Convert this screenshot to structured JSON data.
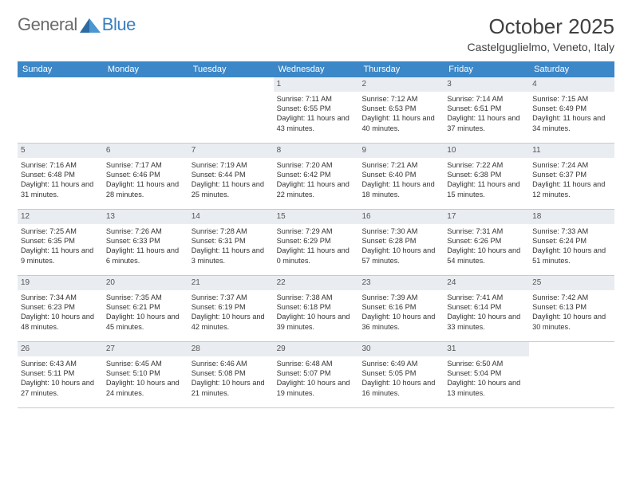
{
  "brand": {
    "part1": "General",
    "part2": "Blue"
  },
  "title": "October 2025",
  "location": "Castelguglielmo, Veneto, Italy",
  "colors": {
    "header_bg": "#3c87c7",
    "header_text": "#ffffff",
    "daynum_bg": "#e9edf1",
    "text": "#333333",
    "rule": "#c9c9c9"
  },
  "days_of_week": [
    "Sunday",
    "Monday",
    "Tuesday",
    "Wednesday",
    "Thursday",
    "Friday",
    "Saturday"
  ],
  "weeks": [
    [
      {
        "n": null
      },
      {
        "n": null
      },
      {
        "n": null
      },
      {
        "n": "1",
        "sunrise": "Sunrise: 7:11 AM",
        "sunset": "Sunset: 6:55 PM",
        "daylight": "Daylight: 11 hours and 43 minutes."
      },
      {
        "n": "2",
        "sunrise": "Sunrise: 7:12 AM",
        "sunset": "Sunset: 6:53 PM",
        "daylight": "Daylight: 11 hours and 40 minutes."
      },
      {
        "n": "3",
        "sunrise": "Sunrise: 7:14 AM",
        "sunset": "Sunset: 6:51 PM",
        "daylight": "Daylight: 11 hours and 37 minutes."
      },
      {
        "n": "4",
        "sunrise": "Sunrise: 7:15 AM",
        "sunset": "Sunset: 6:49 PM",
        "daylight": "Daylight: 11 hours and 34 minutes."
      }
    ],
    [
      {
        "n": "5",
        "sunrise": "Sunrise: 7:16 AM",
        "sunset": "Sunset: 6:48 PM",
        "daylight": "Daylight: 11 hours and 31 minutes."
      },
      {
        "n": "6",
        "sunrise": "Sunrise: 7:17 AM",
        "sunset": "Sunset: 6:46 PM",
        "daylight": "Daylight: 11 hours and 28 minutes."
      },
      {
        "n": "7",
        "sunrise": "Sunrise: 7:19 AM",
        "sunset": "Sunset: 6:44 PM",
        "daylight": "Daylight: 11 hours and 25 minutes."
      },
      {
        "n": "8",
        "sunrise": "Sunrise: 7:20 AM",
        "sunset": "Sunset: 6:42 PM",
        "daylight": "Daylight: 11 hours and 22 minutes."
      },
      {
        "n": "9",
        "sunrise": "Sunrise: 7:21 AM",
        "sunset": "Sunset: 6:40 PM",
        "daylight": "Daylight: 11 hours and 18 minutes."
      },
      {
        "n": "10",
        "sunrise": "Sunrise: 7:22 AM",
        "sunset": "Sunset: 6:38 PM",
        "daylight": "Daylight: 11 hours and 15 minutes."
      },
      {
        "n": "11",
        "sunrise": "Sunrise: 7:24 AM",
        "sunset": "Sunset: 6:37 PM",
        "daylight": "Daylight: 11 hours and 12 minutes."
      }
    ],
    [
      {
        "n": "12",
        "sunrise": "Sunrise: 7:25 AM",
        "sunset": "Sunset: 6:35 PM",
        "daylight": "Daylight: 11 hours and 9 minutes."
      },
      {
        "n": "13",
        "sunrise": "Sunrise: 7:26 AM",
        "sunset": "Sunset: 6:33 PM",
        "daylight": "Daylight: 11 hours and 6 minutes."
      },
      {
        "n": "14",
        "sunrise": "Sunrise: 7:28 AM",
        "sunset": "Sunset: 6:31 PM",
        "daylight": "Daylight: 11 hours and 3 minutes."
      },
      {
        "n": "15",
        "sunrise": "Sunrise: 7:29 AM",
        "sunset": "Sunset: 6:29 PM",
        "daylight": "Daylight: 11 hours and 0 minutes."
      },
      {
        "n": "16",
        "sunrise": "Sunrise: 7:30 AM",
        "sunset": "Sunset: 6:28 PM",
        "daylight": "Daylight: 10 hours and 57 minutes."
      },
      {
        "n": "17",
        "sunrise": "Sunrise: 7:31 AM",
        "sunset": "Sunset: 6:26 PM",
        "daylight": "Daylight: 10 hours and 54 minutes."
      },
      {
        "n": "18",
        "sunrise": "Sunrise: 7:33 AM",
        "sunset": "Sunset: 6:24 PM",
        "daylight": "Daylight: 10 hours and 51 minutes."
      }
    ],
    [
      {
        "n": "19",
        "sunrise": "Sunrise: 7:34 AM",
        "sunset": "Sunset: 6:23 PM",
        "daylight": "Daylight: 10 hours and 48 minutes."
      },
      {
        "n": "20",
        "sunrise": "Sunrise: 7:35 AM",
        "sunset": "Sunset: 6:21 PM",
        "daylight": "Daylight: 10 hours and 45 minutes."
      },
      {
        "n": "21",
        "sunrise": "Sunrise: 7:37 AM",
        "sunset": "Sunset: 6:19 PM",
        "daylight": "Daylight: 10 hours and 42 minutes."
      },
      {
        "n": "22",
        "sunrise": "Sunrise: 7:38 AM",
        "sunset": "Sunset: 6:18 PM",
        "daylight": "Daylight: 10 hours and 39 minutes."
      },
      {
        "n": "23",
        "sunrise": "Sunrise: 7:39 AM",
        "sunset": "Sunset: 6:16 PM",
        "daylight": "Daylight: 10 hours and 36 minutes."
      },
      {
        "n": "24",
        "sunrise": "Sunrise: 7:41 AM",
        "sunset": "Sunset: 6:14 PM",
        "daylight": "Daylight: 10 hours and 33 minutes."
      },
      {
        "n": "25",
        "sunrise": "Sunrise: 7:42 AM",
        "sunset": "Sunset: 6:13 PM",
        "daylight": "Daylight: 10 hours and 30 minutes."
      }
    ],
    [
      {
        "n": "26",
        "sunrise": "Sunrise: 6:43 AM",
        "sunset": "Sunset: 5:11 PM",
        "daylight": "Daylight: 10 hours and 27 minutes."
      },
      {
        "n": "27",
        "sunrise": "Sunrise: 6:45 AM",
        "sunset": "Sunset: 5:10 PM",
        "daylight": "Daylight: 10 hours and 24 minutes."
      },
      {
        "n": "28",
        "sunrise": "Sunrise: 6:46 AM",
        "sunset": "Sunset: 5:08 PM",
        "daylight": "Daylight: 10 hours and 21 minutes."
      },
      {
        "n": "29",
        "sunrise": "Sunrise: 6:48 AM",
        "sunset": "Sunset: 5:07 PM",
        "daylight": "Daylight: 10 hours and 19 minutes."
      },
      {
        "n": "30",
        "sunrise": "Sunrise: 6:49 AM",
        "sunset": "Sunset: 5:05 PM",
        "daylight": "Daylight: 10 hours and 16 minutes."
      },
      {
        "n": "31",
        "sunrise": "Sunrise: 6:50 AM",
        "sunset": "Sunset: 5:04 PM",
        "daylight": "Daylight: 10 hours and 13 minutes."
      },
      {
        "n": null
      }
    ]
  ]
}
